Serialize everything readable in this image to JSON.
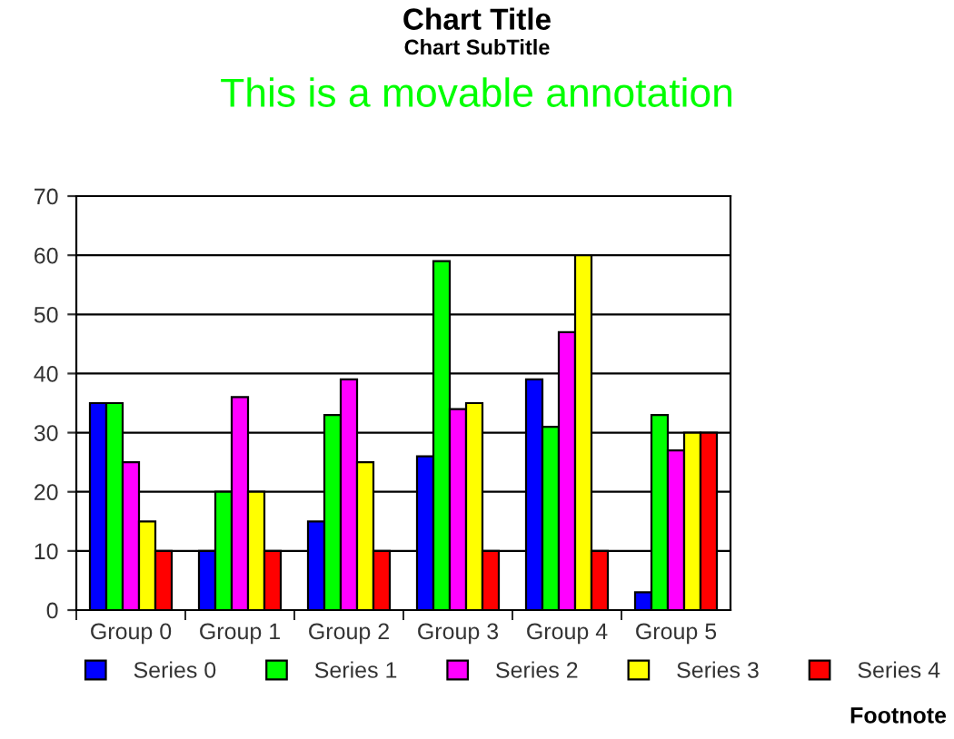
{
  "chart_data": {
    "type": "bar",
    "title": "Chart Title",
    "subtitle": "Chart SubTitle",
    "annotations": [
      "This is a movable annotation",
      "Footnote"
    ],
    "categories": [
      "Group 0",
      "Group 1",
      "Group 2",
      "Group 3",
      "Group 4",
      "Group 5"
    ],
    "series": [
      {
        "name": "Series 0",
        "color": "#0000ff",
        "values": [
          35,
          10,
          15,
          26,
          39,
          3
        ]
      },
      {
        "name": "Series 1",
        "color": "#00ff00",
        "values": [
          35,
          20,
          33,
          59,
          31,
          33
        ]
      },
      {
        "name": "Series 2",
        "color": "#ff00ff",
        "values": [
          25,
          36,
          39,
          34,
          47,
          27
        ]
      },
      {
        "name": "Series 3",
        "color": "#ffff00",
        "values": [
          15,
          20,
          25,
          35,
          60,
          30
        ]
      },
      {
        "name": "Series 4",
        "color": "#ff0000",
        "values": [
          10,
          10,
          10,
          10,
          10,
          30
        ]
      }
    ],
    "ylim": [
      0,
      70
    ],
    "yticks": [
      0,
      10,
      20,
      30,
      40,
      50,
      60,
      70
    ],
    "grid": "y",
    "legend": "bottom"
  }
}
